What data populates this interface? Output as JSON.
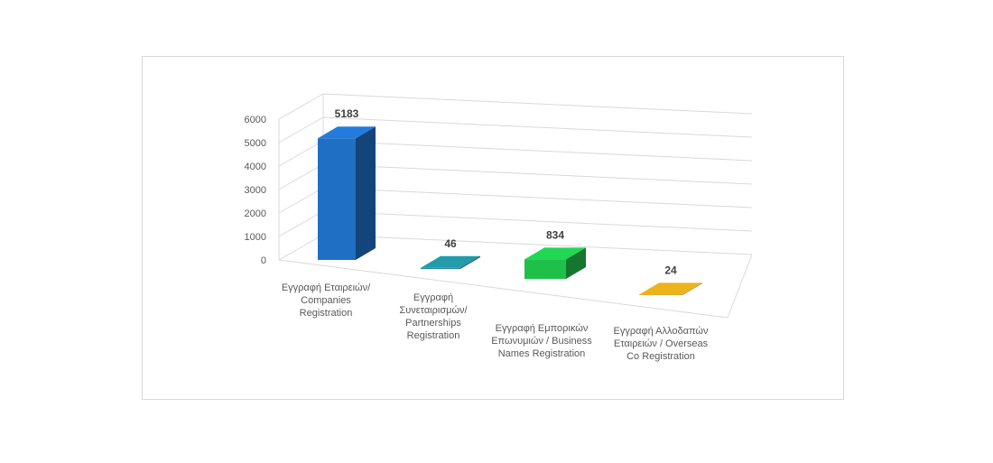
{
  "chart_data": {
    "type": "bar",
    "style": "3d-column",
    "categories": [
      [
        "Εγγραφή Εταιρειών/",
        "Companies",
        "Registration"
      ],
      [
        "Εγγραφή",
        "Συνεταιρισμών/",
        "Partnerships",
        "Registration"
      ],
      [
        "Εγγραφή Εμπορικών",
        "Επωνυμιών / Business",
        "Names Registration"
      ],
      [
        "Εγγραφή Αλλοδαπών",
        "Εταιρειών / Overseas",
        "Co Registration"
      ]
    ],
    "values": [
      5183,
      46,
      834,
      24
    ],
    "data_labels": [
      "5183",
      "46",
      "834",
      "24"
    ],
    "colors": [
      "#1f6fc5",
      "#1e8a99",
      "#1ec04a",
      "#d4a017"
    ],
    "ylim": [
      0,
      6000
    ],
    "yticks": [
      "0",
      "1000",
      "2000",
      "3000",
      "4000",
      "5000",
      "6000"
    ],
    "grid": true,
    "legend": "none",
    "title": "",
    "xlabel": "",
    "ylabel": ""
  }
}
